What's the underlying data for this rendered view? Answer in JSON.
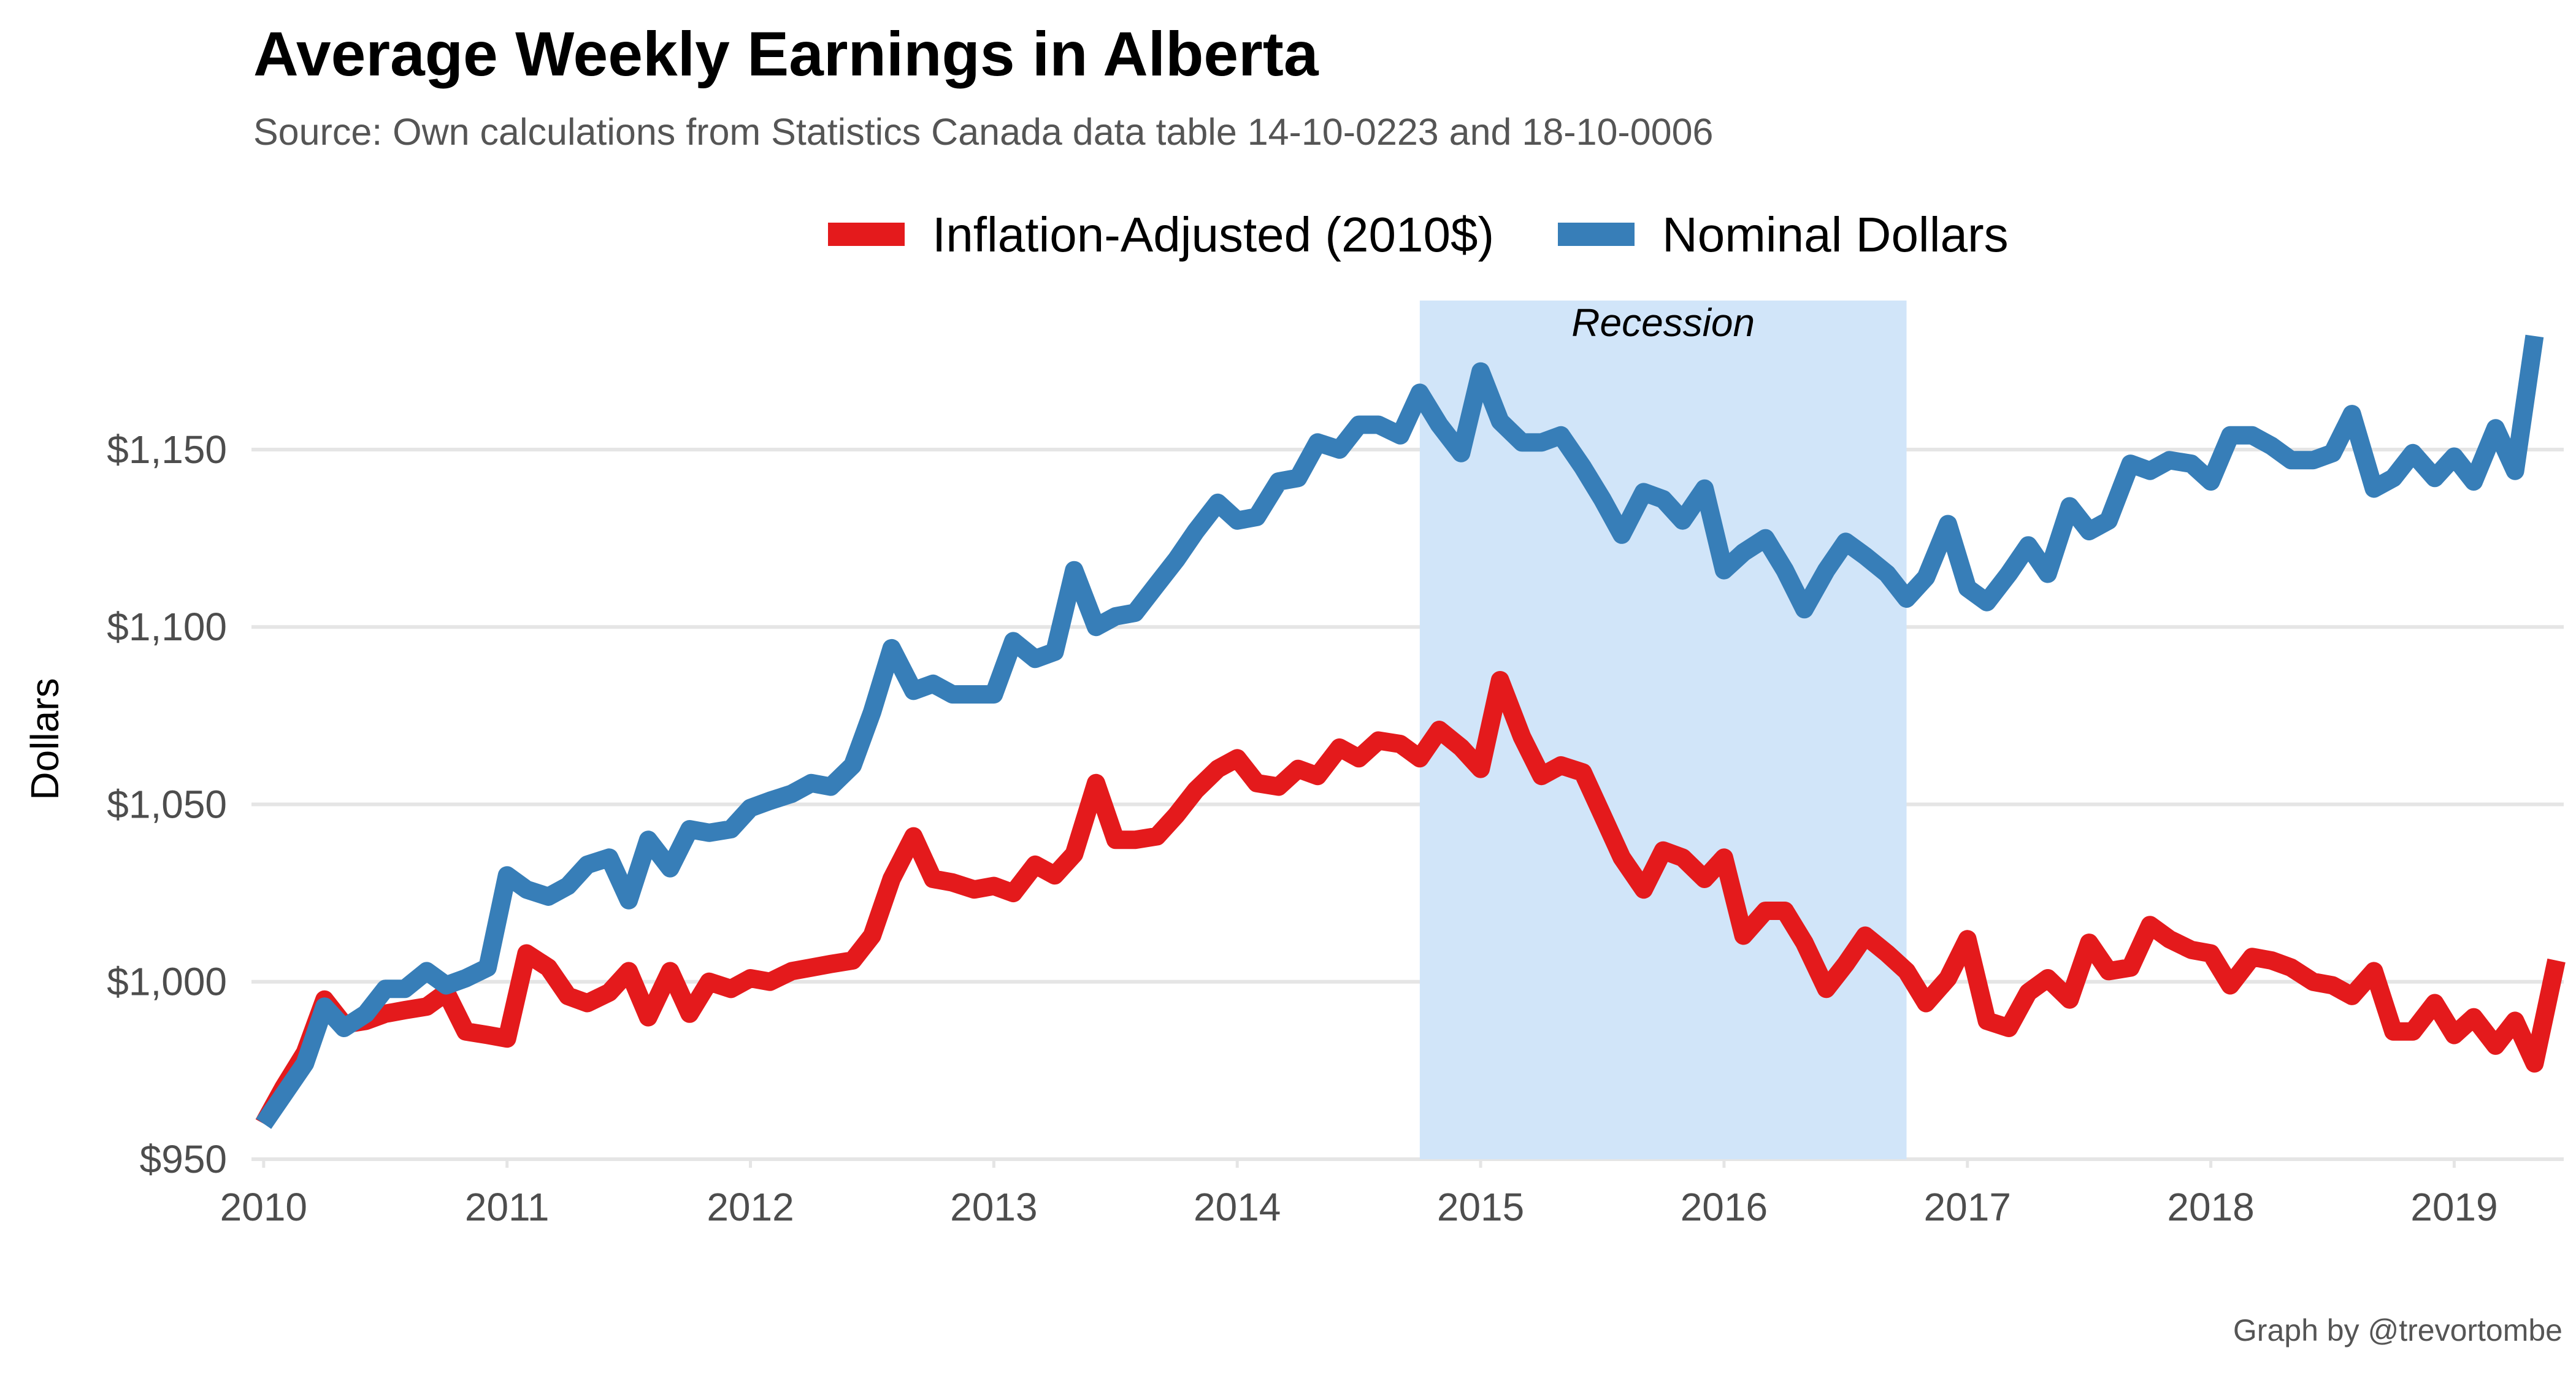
{
  "chart_data": {
    "type": "line",
    "title": "Average Weekly Earnings in Alberta",
    "subtitle": "Source: Own calculations from Statistics Canada data table 14-10-0223 and 18-10-0006",
    "caption": "Graph by @trevortombe",
    "ylabel": "Dollars",
    "xlabel": "",
    "xlim": [
      2009.95,
      2019.45
    ],
    "ylim": [
      950,
      1192
    ],
    "x_ticks": [
      2010,
      2011,
      2012,
      2013,
      2014,
      2015,
      2016,
      2017,
      2018,
      2019
    ],
    "x_tick_labels": [
      "2010",
      "2011",
      "2012",
      "2013",
      "2014",
      "2015",
      "2016",
      "2017",
      "2018",
      "2019"
    ],
    "y_ticks": [
      950,
      1000,
      1050,
      1100,
      1150
    ],
    "y_tick_labels": [
      "$950",
      "$1,000",
      "$1,050",
      "$1,100",
      "$1,150"
    ],
    "grid": true,
    "legend_position": "top",
    "annotations": [
      {
        "type": "shaded-region",
        "label": "Recession",
        "x_start": 2014.75,
        "x_end": 2016.75,
        "color": "#d1e5f9"
      }
    ],
    "series": [
      {
        "name": "Inflation-Adjusted (2010$)",
        "color": "#e41a1c",
        "values": [
          [
            2010.0,
            960
          ],
          [
            2010.08,
            970
          ],
          [
            2010.17,
            980
          ],
          [
            2010.25,
            995
          ],
          [
            2010.33,
            988
          ],
          [
            2010.42,
            989
          ],
          [
            2010.5,
            991
          ],
          [
            2010.58,
            992
          ],
          [
            2010.67,
            993
          ],
          [
            2010.75,
            997
          ],
          [
            2010.83,
            986
          ],
          [
            2010.92,
            985
          ],
          [
            2011.0,
            984
          ],
          [
            2011.08,
            1008
          ],
          [
            2011.17,
            1004
          ],
          [
            2011.25,
            996
          ],
          [
            2011.33,
            994
          ],
          [
            2011.42,
            997
          ],
          [
            2011.5,
            1003
          ],
          [
            2011.58,
            990
          ],
          [
            2011.67,
            1003
          ],
          [
            2011.75,
            991
          ],
          [
            2011.83,
            1000
          ],
          [
            2011.92,
            998
          ],
          [
            2012.0,
            1001
          ],
          [
            2012.08,
            1000
          ],
          [
            2012.17,
            1003
          ],
          [
            2012.25,
            1004
          ],
          [
            2012.33,
            1005
          ],
          [
            2012.42,
            1006
          ],
          [
            2012.5,
            1013
          ],
          [
            2012.58,
            1029
          ],
          [
            2012.67,
            1041
          ],
          [
            2012.75,
            1029
          ],
          [
            2012.83,
            1028
          ],
          [
            2012.92,
            1026
          ],
          [
            2013.0,
            1027
          ],
          [
            2013.08,
            1025
          ],
          [
            2013.17,
            1033
          ],
          [
            2013.25,
            1030
          ],
          [
            2013.33,
            1036
          ],
          [
            2013.42,
            1056
          ],
          [
            2013.5,
            1040
          ],
          [
            2013.58,
            1040
          ],
          [
            2013.67,
            1041
          ],
          [
            2013.75,
            1047
          ],
          [
            2013.83,
            1054
          ],
          [
            2013.92,
            1060
          ],
          [
            2014.0,
            1063
          ],
          [
            2014.08,
            1056
          ],
          [
            2014.17,
            1055
          ],
          [
            2014.25,
            1060
          ],
          [
            2014.33,
            1058
          ],
          [
            2014.42,
            1066
          ],
          [
            2014.5,
            1063
          ],
          [
            2014.58,
            1068
          ],
          [
            2014.67,
            1067
          ],
          [
            2014.75,
            1063
          ],
          [
            2014.83,
            1071
          ],
          [
            2014.92,
            1066
          ],
          [
            2015.0,
            1060
          ],
          [
            2015.08,
            1085
          ],
          [
            2015.17,
            1069
          ],
          [
            2015.25,
            1058
          ],
          [
            2015.33,
            1061
          ],
          [
            2015.42,
            1059
          ],
          [
            2015.5,
            1047
          ],
          [
            2015.58,
            1035
          ],
          [
            2015.67,
            1026
          ],
          [
            2015.75,
            1037
          ],
          [
            2015.83,
            1035
          ],
          [
            2015.92,
            1029
          ],
          [
            2016.0,
            1035
          ],
          [
            2016.08,
            1013
          ],
          [
            2016.17,
            1020
          ],
          [
            2016.25,
            1020
          ],
          [
            2016.33,
            1011
          ],
          [
            2016.42,
            998
          ],
          [
            2016.5,
            1005
          ],
          [
            2016.58,
            1013
          ],
          [
            2016.67,
            1008
          ],
          [
            2016.75,
            1003
          ],
          [
            2016.83,
            994
          ],
          [
            2016.92,
            1001
          ],
          [
            2017.0,
            1012
          ],
          [
            2017.08,
            989
          ],
          [
            2017.17,
            987
          ],
          [
            2017.25,
            997
          ],
          [
            2017.33,
            1001
          ],
          [
            2017.42,
            995
          ],
          [
            2017.5,
            1011
          ],
          [
            2017.58,
            1003
          ],
          [
            2017.67,
            1004
          ],
          [
            2017.75,
            1016
          ],
          [
            2017.83,
            1012
          ],
          [
            2017.92,
            1009
          ],
          [
            2018.0,
            1008
          ],
          [
            2018.08,
            999
          ],
          [
            2018.17,
            1007
          ],
          [
            2018.25,
            1006
          ],
          [
            2018.33,
            1004
          ],
          [
            2018.42,
            1000
          ],
          [
            2018.5,
            999
          ],
          [
            2018.58,
            996
          ],
          [
            2018.67,
            1003
          ],
          [
            2018.75,
            986
          ],
          [
            2018.83,
            986
          ],
          [
            2018.92,
            994
          ],
          [
            2019.0,
            985
          ],
          [
            2019.08,
            990
          ],
          [
            2019.17,
            982
          ],
          [
            2019.25,
            989
          ],
          [
            2019.33,
            977
          ],
          [
            2019.42,
            1006
          ]
        ]
      },
      {
        "name": "Nominal Dollars",
        "color": "#377eb8",
        "values": [
          [
            2010.0,
            960
          ],
          [
            2010.08,
            968
          ],
          [
            2010.17,
            977
          ],
          [
            2010.25,
            993
          ],
          [
            2010.33,
            987
          ],
          [
            2010.42,
            991
          ],
          [
            2010.5,
            998
          ],
          [
            2010.58,
            998
          ],
          [
            2010.67,
            1003
          ],
          [
            2010.75,
            999
          ],
          [
            2010.83,
            1001
          ],
          [
            2010.92,
            1004
          ],
          [
            2011.0,
            1030
          ],
          [
            2011.08,
            1026
          ],
          [
            2011.17,
            1024
          ],
          [
            2011.25,
            1027
          ],
          [
            2011.33,
            1033
          ],
          [
            2011.42,
            1035
          ],
          [
            2011.5,
            1023
          ],
          [
            2011.58,
            1040
          ],
          [
            2011.67,
            1032
          ],
          [
            2011.75,
            1043
          ],
          [
            2011.83,
            1042
          ],
          [
            2011.92,
            1043
          ],
          [
            2012.0,
            1049
          ],
          [
            2012.08,
            1051
          ],
          [
            2012.17,
            1053
          ],
          [
            2012.25,
            1056
          ],
          [
            2012.33,
            1055
          ],
          [
            2012.42,
            1061
          ],
          [
            2012.5,
            1076
          ],
          [
            2012.58,
            1094
          ],
          [
            2012.67,
            1082
          ],
          [
            2012.75,
            1084
          ],
          [
            2012.83,
            1081
          ],
          [
            2012.92,
            1081
          ],
          [
            2013.0,
            1081
          ],
          [
            2013.08,
            1096
          ],
          [
            2013.17,
            1091
          ],
          [
            2013.25,
            1093
          ],
          [
            2013.33,
            1116
          ],
          [
            2013.42,
            1100
          ],
          [
            2013.5,
            1103
          ],
          [
            2013.58,
            1104
          ],
          [
            2013.67,
            1112
          ],
          [
            2013.75,
            1119
          ],
          [
            2013.83,
            1127
          ],
          [
            2013.92,
            1135
          ],
          [
            2014.0,
            1130
          ],
          [
            2014.08,
            1131
          ],
          [
            2014.17,
            1141
          ],
          [
            2014.25,
            1142
          ],
          [
            2014.33,
            1152
          ],
          [
            2014.42,
            1150
          ],
          [
            2014.5,
            1157
          ],
          [
            2014.58,
            1157
          ],
          [
            2014.67,
            1154
          ],
          [
            2014.75,
            1166
          ],
          [
            2014.83,
            1157
          ],
          [
            2014.92,
            1149
          ],
          [
            2015.0,
            1172
          ],
          [
            2015.08,
            1158
          ],
          [
            2015.17,
            1152
          ],
          [
            2015.25,
            1152
          ],
          [
            2015.33,
            1154
          ],
          [
            2015.42,
            1145
          ],
          [
            2015.5,
            1136
          ],
          [
            2015.58,
            1126
          ],
          [
            2015.67,
            1138
          ],
          [
            2015.75,
            1136
          ],
          [
            2015.83,
            1130
          ],
          [
            2015.92,
            1139
          ],
          [
            2016.0,
            1116
          ],
          [
            2016.08,
            1121
          ],
          [
            2016.17,
            1125
          ],
          [
            2016.25,
            1116
          ],
          [
            2016.33,
            1105
          ],
          [
            2016.42,
            1116
          ],
          [
            2016.5,
            1124
          ],
          [
            2016.58,
            1120
          ],
          [
            2016.67,
            1115
          ],
          [
            2016.75,
            1108
          ],
          [
            2016.83,
            1114
          ],
          [
            2016.92,
            1129
          ],
          [
            2017.0,
            1111
          ],
          [
            2017.08,
            1107
          ],
          [
            2017.17,
            1115
          ],
          [
            2017.25,
            1123
          ],
          [
            2017.33,
            1115
          ],
          [
            2017.42,
            1134
          ],
          [
            2017.5,
            1127
          ],
          [
            2017.58,
            1130
          ],
          [
            2017.67,
            1146
          ],
          [
            2017.75,
            1144
          ],
          [
            2017.83,
            1147
          ],
          [
            2017.92,
            1146
          ],
          [
            2018.0,
            1141
          ],
          [
            2018.08,
            1154
          ],
          [
            2018.17,
            1154
          ],
          [
            2018.25,
            1151
          ],
          [
            2018.33,
            1147
          ],
          [
            2018.42,
            1147
          ],
          [
            2018.5,
            1149
          ],
          [
            2018.58,
            1160
          ],
          [
            2018.67,
            1139
          ],
          [
            2018.75,
            1142
          ],
          [
            2018.83,
            1149
          ],
          [
            2018.92,
            1142
          ],
          [
            2019.0,
            1148
          ],
          [
            2019.08,
            1141
          ],
          [
            2019.17,
            1156
          ],
          [
            2019.25,
            1144
          ],
          [
            2019.33,
            1182
          ]
        ]
      }
    ]
  }
}
